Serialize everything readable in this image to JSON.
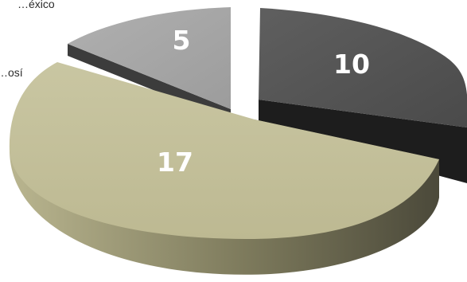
{
  "chart_data": {
    "type": "pie",
    "style": "3d-exploded",
    "slices": [
      {
        "name": "",
        "value": 10,
        "label": "10",
        "top_color": "#595959",
        "side_color": "#222222"
      },
      {
        "name": "…osí",
        "value": 17,
        "label": "17",
        "top_color": "#c0bc94",
        "side_color": "#6d6a4f"
      },
      {
        "name": "…éxico",
        "value": 5,
        "label": "5",
        "top_color": "#a5a5a5",
        "side_color": "#3e3e3e"
      }
    ],
    "legend_placement": "left (cropped)"
  }
}
